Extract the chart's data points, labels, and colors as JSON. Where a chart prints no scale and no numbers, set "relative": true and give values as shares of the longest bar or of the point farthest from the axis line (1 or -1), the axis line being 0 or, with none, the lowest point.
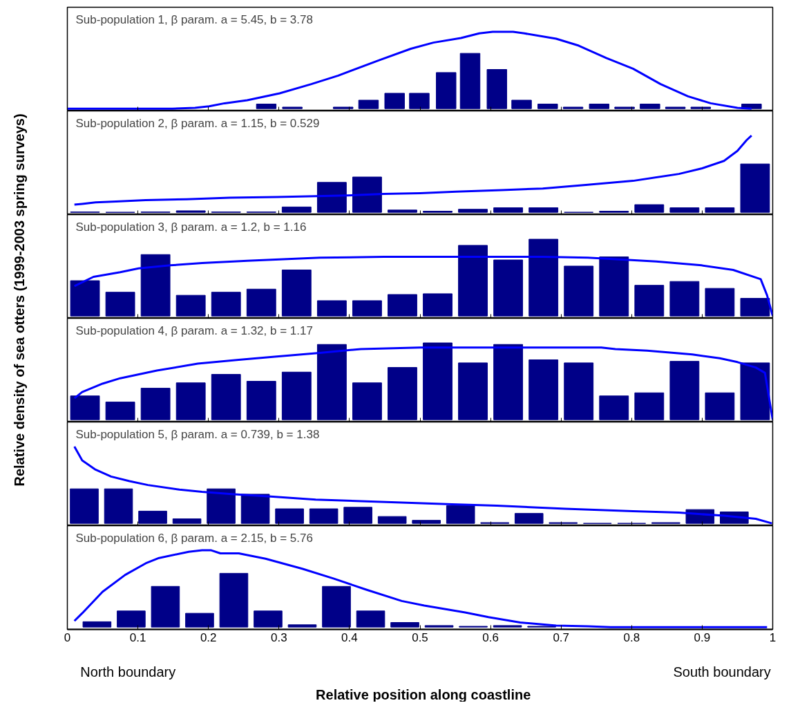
{
  "chart_data": [
    {
      "type": "bar",
      "title": "Sub-population 1, β param. a = 5.45, b = 3.78",
      "relative": true,
      "xlim": [
        0,
        1
      ],
      "xticks": [
        0,
        0.1,
        0.2,
        0.3,
        0.4,
        0.5,
        0.6,
        0.7,
        0.8,
        0.9,
        1
      ],
      "tick_labels": false,
      "series": [
        {
          "color": "#000088",
          "x": [
            0.282,
            0.319,
            0.391,
            0.427,
            0.464,
            0.499,
            0.537,
            0.571,
            0.609,
            0.644,
            0.681,
            0.717,
            0.754,
            0.79,
            0.826,
            0.862,
            0.898,
            0.97
          ],
          "values": [
            0.06,
            0.02,
            0.02,
            0.11,
            0.2,
            0.2,
            0.47,
            0.72,
            0.51,
            0.11,
            0.06,
            0.02,
            0.06,
            0.02,
            0.06,
            0.02,
            0.02,
            0.06
          ]
        },
        {
          "type": "line",
          "color": "#0000ff",
          "x": [
            0,
            0.149,
            0.181,
            0.201,
            0.223,
            0.255,
            0.301,
            0.346,
            0.384,
            0.442,
            0.487,
            0.519,
            0.558,
            0.584,
            0.603,
            0.632,
            0.648,
            0.693,
            0.725,
            0.764,
            0.802,
            0.841,
            0.88,
            0.912,
            0.95,
            0.97
          ],
          "values": [
            0,
            0,
            0.01,
            0.03,
            0.07,
            0.11,
            0.2,
            0.32,
            0.43,
            0.63,
            0.78,
            0.86,
            0.92,
            0.98,
            1,
            1,
            0.98,
            0.91,
            0.82,
            0.66,
            0.52,
            0.32,
            0.16,
            0.07,
            0.01,
            0
          ]
        }
      ]
    },
    {
      "type": "bar",
      "title": "Sub-population 2, β param. a = 1.15, b = 0.529",
      "relative": true,
      "xlim": [
        0,
        1
      ],
      "xticks": [
        0,
        0.1,
        0.2,
        0.3,
        0.4,
        0.5,
        0.6,
        0.7,
        0.8,
        0.9,
        1
      ],
      "tick_labels": false,
      "series": [
        {
          "color": "#000088",
          "x": [
            0.025,
            0.075,
            0.125,
            0.175,
            0.225,
            0.275,
            0.325,
            0.375,
            0.425,
            0.475,
            0.525,
            0.575,
            0.625,
            0.675,
            0.725,
            0.775,
            0.825,
            0.875,
            0.925,
            0.975
          ],
          "values": [
            0.005,
            0,
            0.005,
            0.02,
            0.005,
            0.005,
            0.07,
            0.39,
            0.46,
            0.03,
            0.015,
            0.04,
            0.06,
            0.06,
            0,
            0.015,
            0.1,
            0.06,
            0.06,
            0.63
          ]
        },
        {
          "type": "line",
          "color": "#0000ff",
          "x": [
            0.01,
            0.021,
            0.04,
            0.069,
            0.111,
            0.169,
            0.23,
            0.297,
            0.397,
            0.449,
            0.5,
            0.551,
            0.616,
            0.674,
            0.738,
            0.802,
            0.867,
            0.899,
            0.931,
            0.95,
            0.963,
            0.97
          ],
          "values": [
            0.1,
            0.11,
            0.13,
            0.14,
            0.16,
            0.17,
            0.19,
            0.2,
            0.22,
            0.24,
            0.25,
            0.27,
            0.29,
            0.31,
            0.36,
            0.41,
            0.5,
            0.57,
            0.67,
            0.8,
            0.94,
            1
          ]
        }
      ]
    },
    {
      "type": "bar",
      "title": "Sub-population 3, β param. a = 1.2, b = 1.16",
      "relative": true,
      "xlim": [
        0,
        1
      ],
      "xticks": [
        0,
        0.1,
        0.2,
        0.3,
        0.4,
        0.5,
        0.6,
        0.7,
        0.8,
        0.9,
        1
      ],
      "tick_labels": false,
      "series": [
        {
          "color": "#000088",
          "x": [
            0.025,
            0.075,
            0.125,
            0.175,
            0.225,
            0.275,
            0.325,
            0.375,
            0.425,
            0.475,
            0.525,
            0.575,
            0.625,
            0.675,
            0.725,
            0.775,
            0.825,
            0.875,
            0.925,
            0.975
          ],
          "values": [
            0.46,
            0.31,
            0.8,
            0.27,
            0.31,
            0.35,
            0.6,
            0.2,
            0.2,
            0.28,
            0.29,
            0.92,
            0.73,
            1,
            0.65,
            0.77,
            0.4,
            0.45,
            0.36,
            0.23
          ]
        },
        {
          "type": "line",
          "color": "#0000ff",
          "x": [
            0.01,
            0.037,
            0.075,
            0.101,
            0.146,
            0.191,
            0.255,
            0.358,
            0.449,
            0.674,
            0.738,
            0.835,
            0.899,
            0.944,
            0.983,
            0.992,
            1
          ],
          "values": [
            0.39,
            0.51,
            0.57,
            0.62,
            0.66,
            0.69,
            0.72,
            0.76,
            0.77,
            0.77,
            0.76,
            0.71,
            0.66,
            0.6,
            0.48,
            0.27,
            0
          ]
        }
      ]
    },
    {
      "type": "bar",
      "title": "Sub-population 4, β param. a = 1.32, b = 1.17",
      "relative": true,
      "xlim": [
        0,
        1
      ],
      "xticks": [
        0,
        0.1,
        0.2,
        0.3,
        0.4,
        0.5,
        0.6,
        0.7,
        0.8,
        0.9,
        1
      ],
      "tick_labels": false,
      "series": [
        {
          "color": "#000088",
          "x": [
            0.025,
            0.075,
            0.125,
            0.175,
            0.225,
            0.275,
            0.325,
            0.375,
            0.425,
            0.475,
            0.525,
            0.575,
            0.625,
            0.675,
            0.725,
            0.775,
            0.825,
            0.875,
            0.925,
            0.975
          ],
          "values": [
            0.31,
            0.23,
            0.41,
            0.48,
            0.59,
            0.5,
            0.62,
            0.98,
            0.48,
            0.68,
            1,
            0.74,
            0.98,
            0.78,
            0.74,
            0.31,
            0.35,
            0.76,
            0.35,
            0.74
          ]
        },
        {
          "type": "line",
          "color": "#0000ff",
          "x": [
            0.01,
            0.021,
            0.05,
            0.075,
            0.127,
            0.185,
            0.243,
            0.294,
            0.358,
            0.416,
            0.5,
            0.757,
            0.777,
            0.822,
            0.886,
            0.925,
            0.95,
            0.976,
            0.989,
            1
          ],
          "values": [
            0.28,
            0.36,
            0.47,
            0.54,
            0.64,
            0.73,
            0.78,
            0.82,
            0.87,
            0.92,
            0.94,
            0.94,
            0.92,
            0.9,
            0.85,
            0.8,
            0.75,
            0.68,
            0.61,
            0
          ]
        }
      ]
    },
    {
      "type": "bar",
      "title": "Sub-population 5, β param. a = 0.739, b = 1.38",
      "relative": true,
      "xlim": [
        0,
        1
      ],
      "xticks": [
        0,
        0.1,
        0.2,
        0.3,
        0.4,
        0.5,
        0.6,
        0.7,
        0.8,
        0.9,
        1
      ],
      "tick_labels": false,
      "series": [
        {
          "color": "#000088",
          "x": [
            0.024,
            0.0725,
            0.121,
            0.1695,
            0.218,
            0.2665,
            0.315,
            0.3635,
            0.412,
            0.4605,
            0.509,
            0.5575,
            0.606,
            0.6545,
            0.703,
            0.7515,
            0.8,
            0.8485,
            0.897,
            0.9455
          ],
          "values": [
            0.45,
            0.45,
            0.16,
            0.06,
            0.45,
            0.38,
            0.19,
            0.19,
            0.21,
            0.09,
            0.04,
            0.23,
            0.01,
            0.13,
            0.01,
            0,
            0,
            0.01,
            0.18,
            0.15
          ]
        },
        {
          "type": "line",
          "color": "#0000ff",
          "x": [
            0.01,
            0.021,
            0.04,
            0.062,
            0.088,
            0.114,
            0.159,
            0.191,
            0.236,
            0.288,
            0.352,
            0.416,
            0.481,
            0.545,
            0.609,
            0.706,
            0.802,
            0.867,
            0.931,
            0.976,
            0.999
          ],
          "values": [
            1,
            0.82,
            0.7,
            0.61,
            0.55,
            0.5,
            0.44,
            0.41,
            0.38,
            0.35,
            0.31,
            0.29,
            0.27,
            0.25,
            0.23,
            0.19,
            0.16,
            0.14,
            0.1,
            0.06,
            0
          ]
        }
      ]
    },
    {
      "type": "bar",
      "title": "Sub-population 6, β param. a = 2.15, b = 5.76",
      "relative": true,
      "xlim": [
        0,
        1
      ],
      "xticks": [
        0,
        0.1,
        0.2,
        0.3,
        0.4,
        0.5,
        0.6,
        0.7,
        0.8,
        0.9,
        1
      ],
      "tick_labels": "x",
      "xlabel": "Relative position along coastline",
      "ylabel": "Relative density of sea otters (1999-2003 spring surveys)",
      "annotations": [
        "North boundary",
        "South boundary"
      ],
      "series": [
        {
          "color": "#000088",
          "x": [
            0.042,
            0.0905,
            0.139,
            0.1875,
            0.236,
            0.2845,
            0.333,
            0.3815,
            0.43,
            0.4785,
            0.527,
            0.5755,
            0.624,
            0.6725
          ],
          "values": [
            0.07,
            0.21,
            0.53,
            0.18,
            0.7,
            0.21,
            0.03,
            0.53,
            0.21,
            0.06,
            0.02,
            0.01,
            0.02,
            0.01
          ]
        },
        {
          "type": "line",
          "color": "#0000ff",
          "x": [
            0.01,
            0.021,
            0.05,
            0.082,
            0.111,
            0.13,
            0.172,
            0.191,
            0.204,
            0.217,
            0.243,
            0.281,
            0.333,
            0.378,
            0.423,
            0.474,
            0.506,
            0.564,
            0.597,
            0.642,
            0.693,
            0.738,
            0.77,
            0.992
          ],
          "values": [
            0.08,
            0.18,
            0.46,
            0.68,
            0.83,
            0.9,
            0.98,
            1,
            1,
            0.96,
            0.96,
            0.89,
            0.76,
            0.63,
            0.49,
            0.34,
            0.28,
            0.19,
            0.13,
            0.06,
            0.02,
            0.01,
            0,
            0
          ]
        }
      ]
    }
  ]
}
